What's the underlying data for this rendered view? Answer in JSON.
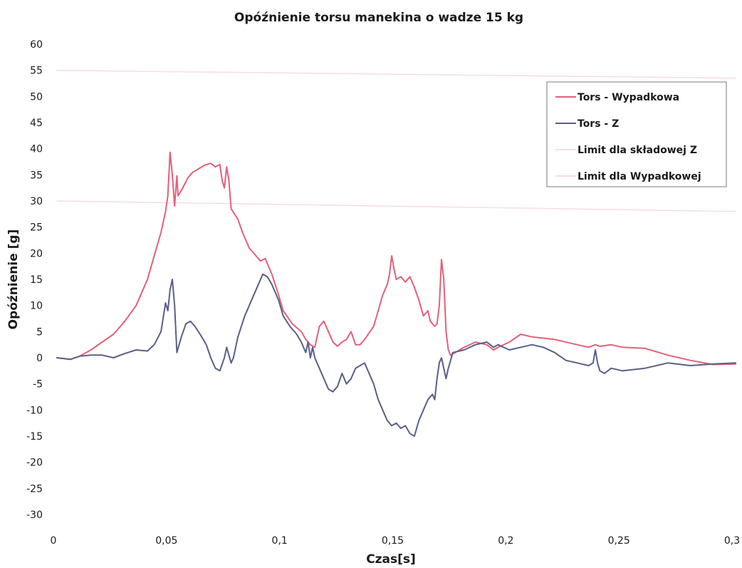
{
  "chart_data": {
    "type": "line",
    "title": "Opóźnienie torsu manekina o wadze 15 kg",
    "xlabel": "Czas[s]",
    "ylabel": "Opóźnienie [g]",
    "xlim": [
      0,
      0.3
    ],
    "ylim": [
      -30,
      60
    ],
    "x_ticks": [
      "0",
      "0,05",
      "0,1",
      "0,15",
      "0,2",
      "0,25",
      "0,3"
    ],
    "y_ticks": [
      "-30",
      "-25",
      "-20",
      "-15",
      "-10",
      "-5",
      "0",
      "5",
      "10",
      "15",
      "20",
      "25",
      "30",
      "35",
      "40",
      "45",
      "50",
      "55",
      "60"
    ],
    "grid": false,
    "legend_position": "top-right",
    "series": [
      {
        "name": "Tors - Wypadkowa",
        "color": "#e4607a",
        "points": [
          [
            0,
            0
          ],
          [
            0.006,
            -0.3
          ],
          [
            0.01,
            0.3
          ],
          [
            0.015,
            1.5
          ],
          [
            0.02,
            3
          ],
          [
            0.025,
            4.5
          ],
          [
            0.03,
            7
          ],
          [
            0.035,
            10
          ],
          [
            0.038,
            13
          ],
          [
            0.04,
            15
          ],
          [
            0.042,
            18
          ],
          [
            0.044,
            21
          ],
          [
            0.046,
            24
          ],
          [
            0.048,
            28
          ],
          [
            0.049,
            31
          ],
          [
            0.05,
            39.3
          ],
          [
            0.051,
            35
          ],
          [
            0.052,
            29
          ],
          [
            0.053,
            34.8
          ],
          [
            0.0535,
            31
          ],
          [
            0.055,
            32
          ],
          [
            0.058,
            34.5
          ],
          [
            0.06,
            35.5
          ],
          [
            0.062,
            36
          ],
          [
            0.065,
            36.8
          ],
          [
            0.068,
            37.2
          ],
          [
            0.07,
            36.5
          ],
          [
            0.072,
            37
          ],
          [
            0.073,
            34
          ],
          [
            0.074,
            32.5
          ],
          [
            0.075,
            36.5
          ],
          [
            0.076,
            34
          ],
          [
            0.077,
            28.5
          ],
          [
            0.08,
            26.5
          ],
          [
            0.082,
            24
          ],
          [
            0.085,
            21
          ],
          [
            0.088,
            19.5
          ],
          [
            0.09,
            18.5
          ],
          [
            0.092,
            19
          ],
          [
            0.095,
            16
          ],
          [
            0.098,
            12
          ],
          [
            0.1,
            9
          ],
          [
            0.104,
            6.5
          ],
          [
            0.108,
            5
          ],
          [
            0.11,
            3.5
          ],
          [
            0.112,
            2.5
          ],
          [
            0.114,
            2
          ],
          [
            0.116,
            6
          ],
          [
            0.118,
            7
          ],
          [
            0.12,
            5
          ],
          [
            0.122,
            3
          ],
          [
            0.124,
            2.2
          ],
          [
            0.126,
            3
          ],
          [
            0.128,
            3.5
          ],
          [
            0.13,
            5
          ],
          [
            0.132,
            2.5
          ],
          [
            0.134,
            2.5
          ],
          [
            0.136,
            3.5
          ],
          [
            0.14,
            6
          ],
          [
            0.142,
            9
          ],
          [
            0.144,
            12
          ],
          [
            0.146,
            14
          ],
          [
            0.147,
            16
          ],
          [
            0.148,
            19.5
          ],
          [
            0.149,
            17
          ],
          [
            0.15,
            15
          ],
          [
            0.152,
            15.5
          ],
          [
            0.154,
            14.5
          ],
          [
            0.156,
            15.5
          ],
          [
            0.158,
            13.5
          ],
          [
            0.16,
            11
          ],
          [
            0.162,
            8
          ],
          [
            0.164,
            9
          ],
          [
            0.165,
            7
          ],
          [
            0.167,
            6
          ],
          [
            0.168,
            6.5
          ],
          [
            0.169,
            10
          ],
          [
            0.17,
            18.8
          ],
          [
            0.171,
            15
          ],
          [
            0.172,
            5
          ],
          [
            0.173,
            1.5
          ],
          [
            0.174,
            0.5
          ],
          [
            0.176,
            1
          ],
          [
            0.18,
            2
          ],
          [
            0.185,
            3
          ],
          [
            0.19,
            2.5
          ],
          [
            0.193,
            1.5
          ],
          [
            0.195,
            2
          ],
          [
            0.2,
            3
          ],
          [
            0.205,
            4.5
          ],
          [
            0.21,
            4
          ],
          [
            0.22,
            3.5
          ],
          [
            0.23,
            2.5
          ],
          [
            0.235,
            2
          ],
          [
            0.238,
            2.5
          ],
          [
            0.24,
            2.2
          ],
          [
            0.245,
            2.5
          ],
          [
            0.25,
            2
          ],
          [
            0.26,
            1.8
          ],
          [
            0.27,
            0.5
          ],
          [
            0.28,
            -0.5
          ],
          [
            0.29,
            -1.3
          ],
          [
            0.3,
            -1.2
          ]
        ]
      },
      {
        "name": "Tors - Z",
        "color": "#5a5f87",
        "points": [
          [
            0,
            0
          ],
          [
            0.006,
            -0.3
          ],
          [
            0.01,
            0.3
          ],
          [
            0.015,
            0.5
          ],
          [
            0.02,
            0.5
          ],
          [
            0.025,
            0
          ],
          [
            0.03,
            0.8
          ],
          [
            0.035,
            1.5
          ],
          [
            0.04,
            1.3
          ],
          [
            0.043,
            2.5
          ],
          [
            0.046,
            5
          ],
          [
            0.048,
            10.5
          ],
          [
            0.049,
            9
          ],
          [
            0.05,
            13
          ],
          [
            0.051,
            15
          ],
          [
            0.052,
            10
          ],
          [
            0.053,
            1
          ],
          [
            0.054,
            2.5
          ],
          [
            0.055,
            4
          ],
          [
            0.057,
            6.5
          ],
          [
            0.059,
            7
          ],
          [
            0.061,
            6
          ],
          [
            0.064,
            4
          ],
          [
            0.066,
            2.5
          ],
          [
            0.068,
            0
          ],
          [
            0.07,
            -2
          ],
          [
            0.072,
            -2.5
          ],
          [
            0.074,
            0
          ],
          [
            0.075,
            2
          ],
          [
            0.076,
            0.5
          ],
          [
            0.077,
            -1
          ],
          [
            0.078,
            0
          ],
          [
            0.08,
            4
          ],
          [
            0.083,
            8
          ],
          [
            0.086,
            11
          ],
          [
            0.089,
            14
          ],
          [
            0.091,
            16
          ],
          [
            0.093,
            15.5
          ],
          [
            0.095,
            14
          ],
          [
            0.098,
            11
          ],
          [
            0.1,
            8
          ],
          [
            0.103,
            6
          ],
          [
            0.106,
            4.5
          ],
          [
            0.108,
            3
          ],
          [
            0.11,
            1
          ],
          [
            0.111,
            3
          ],
          [
            0.112,
            0
          ],
          [
            0.113,
            2
          ],
          [
            0.114,
            0
          ],
          [
            0.116,
            -2
          ],
          [
            0.118,
            -4
          ],
          [
            0.12,
            -6
          ],
          [
            0.122,
            -6.5
          ],
          [
            0.124,
            -5.5
          ],
          [
            0.126,
            -3
          ],
          [
            0.128,
            -5
          ],
          [
            0.13,
            -4
          ],
          [
            0.132,
            -2
          ],
          [
            0.134,
            -1.5
          ],
          [
            0.136,
            -1
          ],
          [
            0.138,
            -3
          ],
          [
            0.14,
            -5
          ],
          [
            0.142,
            -8
          ],
          [
            0.144,
            -10
          ],
          [
            0.146,
            -12
          ],
          [
            0.148,
            -13
          ],
          [
            0.15,
            -12.5
          ],
          [
            0.152,
            -13.5
          ],
          [
            0.154,
            -13
          ],
          [
            0.156,
            -14.5
          ],
          [
            0.158,
            -15
          ],
          [
            0.16,
            -12
          ],
          [
            0.162,
            -10
          ],
          [
            0.164,
            -8
          ],
          [
            0.166,
            -7
          ],
          [
            0.167,
            -8
          ],
          [
            0.168,
            -4
          ],
          [
            0.169,
            -1
          ],
          [
            0.17,
            0
          ],
          [
            0.171,
            -2
          ],
          [
            0.172,
            -4
          ],
          [
            0.173,
            -2
          ],
          [
            0.175,
            1
          ],
          [
            0.18,
            1.5
          ],
          [
            0.185,
            2.5
          ],
          [
            0.19,
            3
          ],
          [
            0.193,
            2
          ],
          [
            0.195,
            2.5
          ],
          [
            0.2,
            1.5
          ],
          [
            0.205,
            2
          ],
          [
            0.21,
            2.5
          ],
          [
            0.215,
            2
          ],
          [
            0.22,
            1
          ],
          [
            0.225,
            -0.5
          ],
          [
            0.23,
            -1
          ],
          [
            0.235,
            -1.5
          ],
          [
            0.237,
            -1
          ],
          [
            0.238,
            1.5
          ],
          [
            0.239,
            -1
          ],
          [
            0.24,
            -2.5
          ],
          [
            0.242,
            -3
          ],
          [
            0.245,
            -2
          ],
          [
            0.25,
            -2.5
          ],
          [
            0.26,
            -2
          ],
          [
            0.27,
            -1
          ],
          [
            0.28,
            -1.5
          ],
          [
            0.29,
            -1.2
          ],
          [
            0.3,
            -1
          ]
        ]
      },
      {
        "name": "Limit dla składowej Z",
        "color": "#f6dde2",
        "points": [
          [
            0,
            30
          ],
          [
            0.3,
            28
          ]
        ]
      },
      {
        "name": "Limit dla Wypadkowej",
        "color": "#f6dde2",
        "points": [
          [
            0,
            55
          ],
          [
            0.3,
            53.5
          ]
        ]
      }
    ]
  }
}
